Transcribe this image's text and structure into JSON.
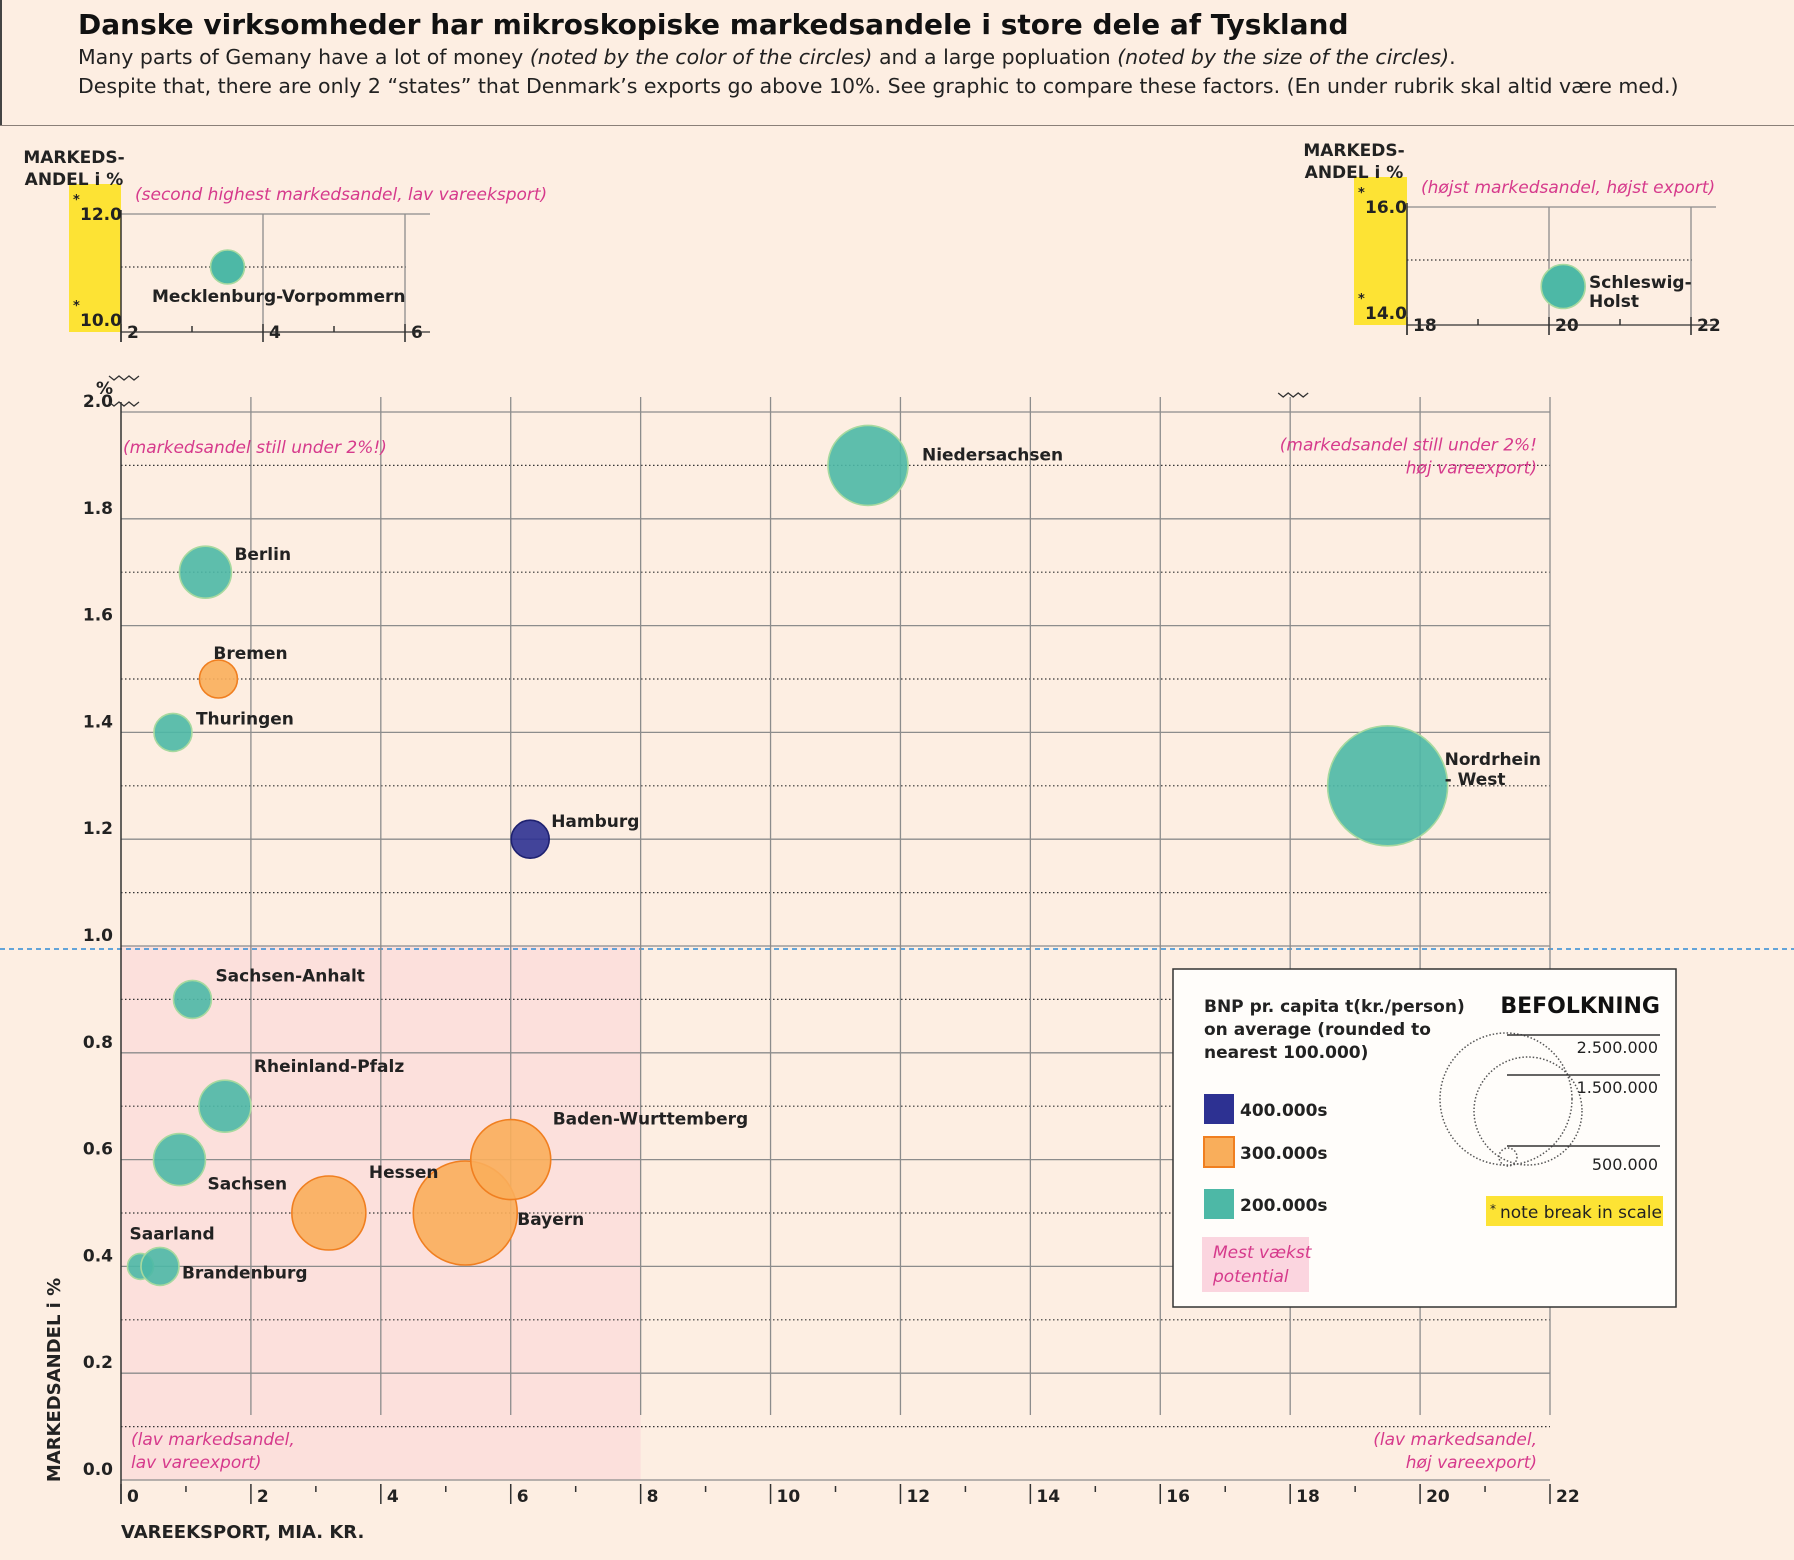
{
  "title": "Danske virksomheder har mikroskopiske markedsandele i store dele af Tyskland",
  "subtitle": {
    "line1_a": "Many parts of Gemany have a lot of money ",
    "line1_b": "(noted by the color of the circles)",
    "line1_c": " and a large popluation ",
    "line1_d": "(noted by the size of the circles)",
    "line1_e": ".",
    "line2": "Despite that, there are only 2 “states” that Denmark’s exports go above 10%.  See graphic to compare these factors. (En under rubrik skal altid være med.)"
  },
  "axis_labels": {
    "x": "VAREEKSPORT, MIA. KR.",
    "y": "MARKEDSANDEL i %",
    "top_line1": "MARKEDS-",
    "top_line2": "ANDEL i %",
    "pct": "%"
  },
  "annotations": {
    "top_left": "(markedsandel still under 2%!)",
    "top_right_1": "(markedsandel still under 2%!",
    "top_right_2": "høj vareexport)",
    "bottom_left_1": "(lav markedsandel,",
    "bottom_left_2": "lav vareexport)",
    "bottom_right_1": "(lav markedsandel,",
    "bottom_right_2": "høj vareexport)",
    "inset_left": "(second highest markedsandel, lav vareeksport)",
    "inset_right": "(højst markedsandel, højst export)"
  },
  "colors": {
    "gdp_400": "#2d3192",
    "gdp_300": "#f9ae5b",
    "gdp_200": "#4db8a6",
    "highlight": "#fde334",
    "annotation": "#d63a8c",
    "region": "#fce0dc"
  },
  "legend": {
    "gdp_title_1": "BNP pr. capita t(kr./person)",
    "gdp_title_2": "on average (rounded to",
    "gdp_title_3": "nearest 100.000)",
    "gdp_items": [
      {
        "label": "400.000s",
        "color": "#2d3192"
      },
      {
        "label": "300.000s",
        "color": "#f9ae5b"
      },
      {
        "label": "200.000s",
        "color": "#4db8a6"
      }
    ],
    "pop_title": "BEFOLKNING",
    "pop_items": [
      "2.500.000",
      "1.500.000",
      "500.000"
    ],
    "note_star": "*",
    "note": "note break in scale",
    "growth": "Mest vækst potential"
  },
  "chart_data": [
    {
      "type": "scatter",
      "title": "",
      "xlabel": "VAREEKSPORT, MIA. KR.",
      "ylabel": "MARKEDSANDEL i %",
      "xlim": [
        0,
        22
      ],
      "ylim": [
        0,
        2.0
      ],
      "x_ticks": [
        "0",
        "2",
        "4",
        "6",
        "8",
        "10",
        "12",
        "14",
        "16",
        "18",
        "20",
        "22"
      ],
      "y_ticks": [
        "0.0",
        "0.2",
        "0.4",
        "0.6",
        "0.8",
        "1.0",
        "1.2",
        "1.4",
        "1.6",
        "1.8",
        "2.0"
      ],
      "points": [
        {
          "name": "Niedersachsen",
          "x": 11.5,
          "y": 1.9,
          "size": "large",
          "gdp": "200.000s"
        },
        {
          "name": "Berlin",
          "x": 1.3,
          "y": 1.7,
          "size": "medium",
          "gdp": "200.000s"
        },
        {
          "name": "Bremen",
          "x": 1.5,
          "y": 1.5,
          "size": "small",
          "gdp": "300.000s"
        },
        {
          "name": "Thuringen",
          "x": 0.8,
          "y": 1.4,
          "size": "small",
          "gdp": "200.000s"
        },
        {
          "name": "Hamburg",
          "x": 6.3,
          "y": 1.2,
          "size": "small",
          "gdp": "400.000s"
        },
        {
          "name": "Nordrhein - West",
          "x": 19.5,
          "y": 1.3,
          "size": "largest",
          "gdp": "200.000s"
        },
        {
          "name": "Sachsen-Anhalt",
          "x": 1.1,
          "y": 0.9,
          "size": "small",
          "gdp": "200.000s"
        },
        {
          "name": "Rheinland-Pfalz",
          "x": 1.6,
          "y": 0.7,
          "size": "medium",
          "gdp": "200.000s"
        },
        {
          "name": "Sachsen",
          "x": 0.9,
          "y": 0.6,
          "size": "medium",
          "gdp": "200.000s"
        },
        {
          "name": "Hessen",
          "x": 3.2,
          "y": 0.5,
          "size": "medium-large",
          "gdp": "300.000s"
        },
        {
          "name": "Bayern",
          "x": 5.3,
          "y": 0.5,
          "size": "very large",
          "gdp": "300.000s"
        },
        {
          "name": "Baden-Wurttemberg",
          "x": 6.0,
          "y": 0.6,
          "size": "large",
          "gdp": "300.000s"
        },
        {
          "name": "Saarland",
          "x": 0.3,
          "y": 0.4,
          "size": "tiny",
          "gdp": "200.000s"
        },
        {
          "name": "Brandenburg",
          "x": 0.6,
          "y": 0.4,
          "size": "small",
          "gdp": "200.000s"
        }
      ]
    },
    {
      "type": "scatter",
      "title": "(second highest markedsandel, lav vareeksport)",
      "xlim": [
        2,
        6
      ],
      "ylim": [
        10.0,
        12.0
      ],
      "x_ticks": [
        "2",
        "4",
        "6"
      ],
      "y_ticks": [
        "10.0",
        "12.0"
      ],
      "points": [
        {
          "name": "Mecklenburg-Vorpommern",
          "x": 3.5,
          "y": 11.0,
          "gdp": "200.000s"
        }
      ]
    },
    {
      "type": "scatter",
      "title": "(højst markedsandel, højst export)",
      "xlim": [
        18,
        22
      ],
      "ylim": [
        14.0,
        16.0
      ],
      "x_ticks": [
        "18",
        "20",
        "22"
      ],
      "y_ticks": [
        "14.0",
        "16.0"
      ],
      "points": [
        {
          "name": "Schleswig-Holst",
          "x": 20.2,
          "y": 14.5,
          "gdp": "200.000s"
        }
      ]
    }
  ]
}
